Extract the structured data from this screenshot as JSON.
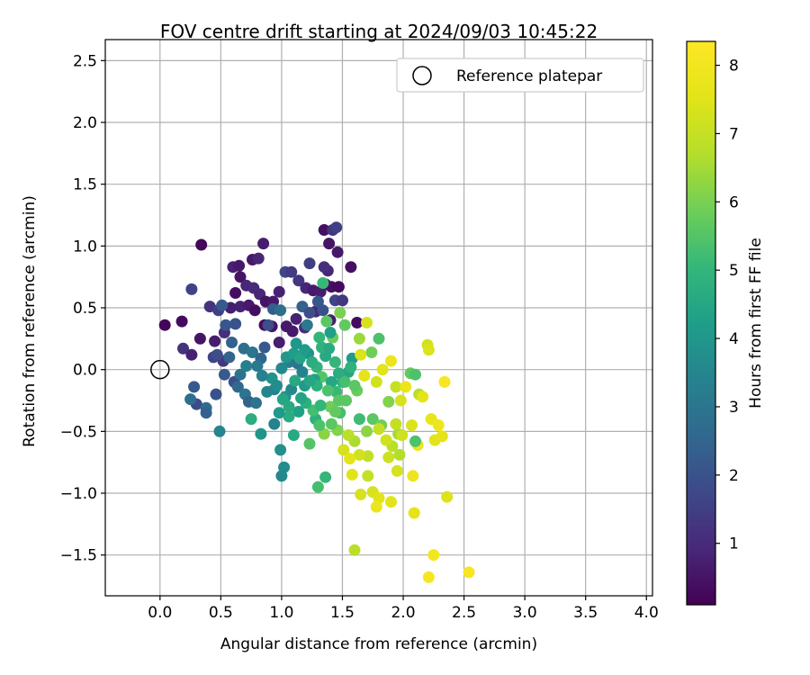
{
  "chart_data": {
    "type": "scatter",
    "title": "FOV centre drift starting at 2024/09/03 10:45:22",
    "xlabel": "Angular distance from reference (arcmin)",
    "ylabel": "Rotation from reference (arcmin)",
    "xlim": [
      -0.45,
      4.05
    ],
    "ylim": [
      -1.83,
      2.67
    ],
    "xticks": [
      0.0,
      0.5,
      1.0,
      1.5,
      2.0,
      2.5,
      3.0,
      3.5,
      4.0
    ],
    "xtick_labels": [
      "0.0",
      "0.5",
      "1.0",
      "1.5",
      "2.0",
      "2.5",
      "3.0",
      "3.5",
      "4.0"
    ],
    "yticks": [
      -1.5,
      -1.0,
      -0.5,
      0.0,
      0.5,
      1.0,
      1.5,
      2.0,
      2.5
    ],
    "ytick_labels": [
      "−1.5",
      "−1.0",
      "−0.5",
      "0.0",
      "0.5",
      "1.0",
      "1.5",
      "2.0",
      "2.5"
    ],
    "grid": true,
    "legend": {
      "placement": "top-right",
      "entries": [
        {
          "label": "Reference platepar",
          "marker": "open-circle"
        }
      ]
    },
    "reference_point": {
      "x": 0.0,
      "y": 0.0,
      "label": "Reference platepar"
    },
    "colorbar": {
      "label": "Hours from first FF file",
      "colormap": "viridis",
      "range": [
        0.1,
        8.35
      ],
      "ticks": [
        1,
        2,
        3,
        4,
        5,
        6,
        7,
        8
      ],
      "tick_labels": [
        "1",
        "2",
        "3",
        "4",
        "5",
        "6",
        "7",
        "8"
      ]
    },
    "series": [
      {
        "points_note_fields": [
          "x",
          "y",
          "hours"
        ],
        "points": [
          [
            0.04,
            0.36,
            0.2
          ],
          [
            0.18,
            0.39,
            0.3
          ],
          [
            0.34,
            1.01,
            0.2
          ],
          [
            0.26,
            0.65,
            1.6
          ],
          [
            0.19,
            0.17,
            1.2
          ],
          [
            0.33,
            0.25,
            0.5
          ],
          [
            0.26,
            0.12,
            0.8
          ],
          [
            0.41,
            0.51,
            1.2
          ],
          [
            0.48,
            0.48,
            1.5
          ],
          [
            0.45,
            0.23,
            0.7
          ],
          [
            0.53,
            0.3,
            1.1
          ],
          [
            0.44,
            0.1,
            1.6
          ],
          [
            0.52,
            0.07,
            1.3
          ],
          [
            0.6,
            0.83,
            0.8
          ],
          [
            0.65,
            0.84,
            0.6
          ],
          [
            0.66,
            0.75,
            0.5
          ],
          [
            0.62,
            0.62,
            0.4
          ],
          [
            0.71,
            0.68,
            0.9
          ],
          [
            0.58,
            0.5,
            0.7
          ],
          [
            0.66,
            0.51,
            0.8
          ],
          [
            0.76,
            0.89,
            0.6
          ],
          [
            0.81,
            0.9,
            0.9
          ],
          [
            0.85,
            1.02,
            0.7
          ],
          [
            0.77,
            0.66,
            1.0
          ],
          [
            0.82,
            0.61,
            0.9
          ],
          [
            0.87,
            0.55,
            0.5
          ],
          [
            0.93,
            0.55,
            0.6
          ],
          [
            0.98,
            0.63,
            0.8
          ],
          [
            1.03,
            0.79,
            1.7
          ],
          [
            1.08,
            0.79,
            1.4
          ],
          [
            1.14,
            0.72,
            1.3
          ],
          [
            1.2,
            0.66,
            0.9
          ],
          [
            1.26,
            0.64,
            0.6
          ],
          [
            1.32,
            0.63,
            0.7
          ],
          [
            1.36,
            0.69,
            0.6
          ],
          [
            1.41,
            0.67,
            0.4
          ],
          [
            1.47,
            0.67,
            0.3
          ],
          [
            1.35,
            1.13,
            0.4
          ],
          [
            1.42,
            1.13,
            1.2
          ],
          [
            1.45,
            1.15,
            1.5
          ],
          [
            1.39,
            1.02,
            0.5
          ],
          [
            1.57,
            0.83,
            0.4
          ],
          [
            1.62,
            0.38,
            0.3
          ],
          [
            1.23,
            0.86,
            1.5
          ],
          [
            0.73,
            0.52,
            0.6
          ],
          [
            0.78,
            0.48,
            0.4
          ],
          [
            0.86,
            0.36,
            0.3
          ],
          [
            0.92,
            0.35,
            0.5
          ],
          [
            1.04,
            0.35,
            0.6
          ],
          [
            1.12,
            0.41,
            0.8
          ],
          [
            1.19,
            0.34,
            1.0
          ],
          [
            1.28,
            0.47,
            0.9
          ],
          [
            1.4,
            0.4,
            0.7
          ],
          [
            1.09,
            0.31,
            0.6
          ],
          [
            0.98,
            0.22,
            0.7
          ],
          [
            0.28,
            -0.14,
            2.2
          ],
          [
            0.3,
            -0.28,
            1.8
          ],
          [
            0.38,
            -0.31,
            2.7
          ],
          [
            0.46,
            -0.2,
            2.0
          ],
          [
            0.25,
            -0.24,
            2.8
          ],
          [
            0.38,
            -0.35,
            2.4
          ],
          [
            0.49,
            -0.5,
            3.5
          ],
          [
            0.53,
            -0.04,
            2.2
          ],
          [
            0.61,
            -0.1,
            1.9
          ],
          [
            0.64,
            -0.14,
            2.6
          ],
          [
            0.7,
            -0.2,
            3.0
          ],
          [
            0.73,
            -0.26,
            2.4
          ],
          [
            0.79,
            -0.27,
            2.9
          ],
          [
            0.75,
            -0.4,
            4.7
          ],
          [
            0.83,
            -0.52,
            4.0
          ],
          [
            0.94,
            -0.44,
            3.4
          ],
          [
            0.99,
            -0.65,
            3.8
          ],
          [
            1.02,
            -0.79,
            3.7
          ],
          [
            1.0,
            -0.86,
            3.6
          ],
          [
            1.1,
            -0.53,
            4.6
          ],
          [
            1.3,
            -0.95,
            5.3
          ],
          [
            1.36,
            -0.87,
            5.0
          ],
          [
            1.23,
            -0.6,
            5.5
          ],
          [
            1.28,
            -0.4,
            4.8
          ],
          [
            0.62,
            0.37,
            2.0
          ],
          [
            0.59,
            0.22,
            2.4
          ],
          [
            0.69,
            0.17,
            2.8
          ],
          [
            0.76,
            0.14,
            3.0
          ],
          [
            0.83,
            0.09,
            2.5
          ],
          [
            0.86,
            0.18,
            2.2
          ],
          [
            0.89,
            0.36,
            1.9
          ],
          [
            0.93,
            0.49,
            2.3
          ],
          [
            0.99,
            0.48,
            2.8
          ],
          [
            1.06,
            0.06,
            3.2
          ],
          [
            1.13,
            0.05,
            3.0
          ],
          [
            1.17,
            -0.02,
            3.4
          ],
          [
            1.19,
            -0.13,
            4.1
          ],
          [
            1.08,
            -0.16,
            3.6
          ],
          [
            1.03,
            -0.22,
            3.8
          ],
          [
            0.92,
            -0.07,
            3.9
          ],
          [
            0.94,
            -0.16,
            3.3
          ],
          [
            1.22,
            0.13,
            3.9
          ],
          [
            1.31,
            0.26,
            5.0
          ],
          [
            1.37,
            0.39,
            5.6
          ],
          [
            1.42,
            0.26,
            5.8
          ],
          [
            1.48,
            0.46,
            6.0
          ],
          [
            1.52,
            0.36,
            5.7
          ],
          [
            1.34,
            0.7,
            5.1
          ],
          [
            1.4,
            0.3,
            4.3
          ],
          [
            1.36,
            0.11,
            4.6
          ],
          [
            1.29,
            0.02,
            4.9
          ],
          [
            1.33,
            -0.06,
            5.5
          ],
          [
            1.41,
            -0.1,
            4.5
          ],
          [
            1.45,
            -0.18,
            5.1
          ],
          [
            1.5,
            -0.1,
            4.8
          ],
          [
            1.55,
            -0.02,
            4.5
          ],
          [
            1.58,
            0.09,
            4.1
          ],
          [
            1.62,
            -0.17,
            5.8
          ],
          [
            1.64,
            -0.4,
            5.2
          ],
          [
            1.7,
            -0.5,
            6.2
          ],
          [
            1.75,
            -0.4,
            5.6
          ],
          [
            1.82,
            -0.45,
            5.9
          ],
          [
            1.88,
            -0.26,
            6.1
          ],
          [
            1.8,
            0.25,
            5.4
          ],
          [
            1.74,
            0.14,
            5.9
          ],
          [
            1.64,
            0.25,
            6.4
          ],
          [
            1.7,
            0.38,
            7.3
          ],
          [
            1.65,
            0.12,
            7.4
          ],
          [
            1.68,
            -0.05,
            7.6
          ],
          [
            1.78,
            -0.1,
            7.2
          ],
          [
            1.83,
            0.0,
            7.5
          ],
          [
            1.9,
            0.07,
            7.8
          ],
          [
            1.94,
            -0.14,
            7.0
          ],
          [
            1.98,
            -0.25,
            7.3
          ],
          [
            2.02,
            -0.14,
            7.8
          ],
          [
            2.06,
            -0.03,
            5.7
          ],
          [
            2.1,
            -0.04,
            5.4
          ],
          [
            2.13,
            -0.2,
            6.8
          ],
          [
            2.16,
            -0.22,
            7.6
          ],
          [
            2.2,
            0.2,
            7.2
          ],
          [
            2.21,
            0.16,
            7.4
          ],
          [
            2.34,
            -0.1,
            8.2
          ],
          [
            2.23,
            -0.4,
            7.7
          ],
          [
            2.29,
            -0.45,
            7.9
          ],
          [
            2.26,
            -0.57,
            7.5
          ],
          [
            2.32,
            -0.54,
            7.6
          ],
          [
            2.12,
            -0.61,
            7.8
          ],
          [
            2.1,
            -0.58,
            5.4
          ],
          [
            2.07,
            -0.45,
            7.4
          ],
          [
            1.96,
            -0.52,
            6.5
          ],
          [
            1.94,
            -0.44,
            7.0
          ],
          [
            1.99,
            -0.53,
            7.1
          ],
          [
            1.91,
            -0.62,
            6.8
          ],
          [
            1.88,
            -0.71,
            7.1
          ],
          [
            1.95,
            -0.82,
            7.3
          ],
          [
            1.97,
            -0.69,
            6.7
          ],
          [
            1.86,
            -0.57,
            7.2
          ],
          [
            1.8,
            -0.48,
            7.0
          ],
          [
            1.71,
            -0.7,
            6.9
          ],
          [
            1.64,
            -0.69,
            7.2
          ],
          [
            1.6,
            -0.58,
            6.6
          ],
          [
            1.55,
            -0.53,
            6.8
          ],
          [
            1.51,
            -0.65,
            7.3
          ],
          [
            1.46,
            -0.49,
            6.1
          ],
          [
            1.48,
            -0.35,
            5.3
          ],
          [
            1.53,
            -0.25,
            5.6
          ],
          [
            1.41,
            -0.44,
            5.6
          ],
          [
            1.35,
            -0.52,
            6.2
          ],
          [
            1.4,
            -0.3,
            5.9
          ],
          [
            1.31,
            -0.45,
            5.4
          ],
          [
            1.26,
            -0.33,
            5.3
          ],
          [
            1.2,
            -0.27,
            4.8
          ],
          [
            1.14,
            -0.34,
            4.3
          ],
          [
            1.06,
            -0.38,
            4.7
          ],
          [
            1.01,
            -0.24,
            4.5
          ],
          [
            1.65,
            -1.01,
            7.3
          ],
          [
            1.75,
            -0.99,
            7.3
          ],
          [
            1.8,
            -1.04,
            7.5
          ],
          [
            1.9,
            -1.07,
            7.5
          ],
          [
            1.78,
            -1.11,
            7.8
          ],
          [
            2.09,
            -1.16,
            7.6
          ],
          [
            2.36,
            -1.03,
            7.4
          ],
          [
            1.6,
            -1.46,
            6.8
          ],
          [
            2.21,
            -1.68,
            8.1
          ],
          [
            2.25,
            -1.5,
            8.0
          ],
          [
            2.54,
            -1.64,
            8.2
          ],
          [
            2.08,
            -0.86,
            7.9
          ],
          [
            1.58,
            -0.85,
            7.5
          ],
          [
            1.56,
            -0.72,
            7.6
          ],
          [
            1.71,
            -0.86,
            7.0
          ],
          [
            0.47,
            0.12,
            1.9
          ],
          [
            0.54,
            0.36,
            2.1
          ],
          [
            0.51,
            0.52,
            2.2
          ],
          [
            0.57,
            0.1,
            2.5
          ],
          [
            0.66,
            -0.04,
            2.9
          ],
          [
            0.71,
            0.03,
            3.3
          ],
          [
            0.8,
            0.03,
            3.1
          ],
          [
            0.84,
            -0.05,
            3.4
          ],
          [
            0.88,
            -0.18,
            3.5
          ],
          [
            0.96,
            -0.13,
            3.7
          ],
          [
            1.0,
            0.01,
            3.6
          ],
          [
            1.04,
            0.1,
            4.0
          ],
          [
            1.1,
            0.13,
            4.2
          ],
          [
            1.15,
            0.09,
            4.4
          ],
          [
            1.19,
            0.16,
            4.2
          ],
          [
            1.25,
            0.06,
            4.7
          ],
          [
            1.27,
            -0.08,
            4.3
          ],
          [
            1.33,
            0.18,
            4.9
          ],
          [
            1.39,
            0.17,
            4.6
          ],
          [
            1.44,
            0.06,
            5.0
          ],
          [
            1.47,
            -0.03,
            4.7
          ],
          [
            1.52,
            -0.1,
            5.3
          ],
          [
            1.57,
            0.02,
            4.9
          ],
          [
            1.6,
            -0.13,
            5.6
          ],
          [
            1.47,
            -0.25,
            5.6
          ],
          [
            1.44,
            -0.34,
            5.7
          ],
          [
            1.38,
            -0.17,
            5.4
          ],
          [
            1.32,
            -0.29,
            5.0
          ],
          [
            1.29,
            -0.13,
            4.8
          ],
          [
            1.23,
            -0.09,
            4.5
          ],
          [
            1.16,
            -0.23,
            4.4
          ],
          [
            1.11,
            -0.09,
            4.6
          ],
          [
            1.06,
            -0.3,
            4.6
          ],
          [
            0.98,
            -0.35,
            4.1
          ],
          [
            1.12,
            0.21,
            4.0
          ],
          [
            1.21,
            0.36,
            3.1
          ],
          [
            1.17,
            0.51,
            2.4
          ],
          [
            1.23,
            0.46,
            1.9
          ],
          [
            1.3,
            0.55,
            2.1
          ],
          [
            1.34,
            0.48,
            2.0
          ],
          [
            1.44,
            0.56,
            1.6
          ],
          [
            1.5,
            0.56,
            1.3
          ],
          [
            1.38,
            0.8,
            0.9
          ],
          [
            1.46,
            0.95,
            0.6
          ],
          [
            1.35,
            0.83,
            1.1
          ]
        ]
      }
    ]
  }
}
